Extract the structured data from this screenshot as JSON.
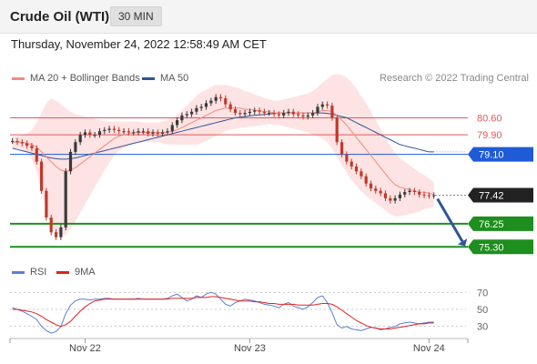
{
  "header": {
    "title": "Crude Oil (WTI)",
    "timeframe": "30 MIN",
    "datetime": "Thursday, November 24, 2022 12:58:49 AM CET"
  },
  "legend": {
    "bollinger": {
      "label": "MA 20 + Bollinger Bands",
      "color": "#f28b82"
    },
    "ma50": {
      "label": "MA 50",
      "color": "#2f5597"
    },
    "credit": "Research © 2022 Trading Central"
  },
  "rsi_legend": {
    "rsi": {
      "label": "RSI",
      "color": "#5b7fd6"
    },
    "ma9": {
      "label": "9MA",
      "color": "#e0221f"
    }
  },
  "colors": {
    "candle_up": "#3a3a3a",
    "candle_down": "#c0392b",
    "band_fill": "#fde3e3",
    "resistance": "#e05a5a",
    "pivot": "#1f5bd6",
    "support": "#1e8e1e",
    "last_price": "#222222",
    "forecast_arrow": "#2f5597"
  },
  "chart_data": {
    "type": "candlestick",
    "ylim": [
      74.9,
      81.7
    ],
    "x_ticks": [
      "Nov 22",
      "Nov 23",
      "Nov 24"
    ],
    "levels": [
      {
        "value": 80.6,
        "label": "80.60",
        "kind": "resistance"
      },
      {
        "value": 79.9,
        "label": "79.90",
        "kind": "resistance"
      },
      {
        "value": 79.1,
        "label": "79.10",
        "kind": "pivot"
      },
      {
        "value": 77.42,
        "label": "77.42",
        "kind": "last"
      },
      {
        "value": 76.25,
        "label": "76.25",
        "kind": "support"
      },
      {
        "value": 75.3,
        "label": "75.30",
        "kind": "support"
      }
    ],
    "close": [
      79.65,
      79.6,
      79.55,
      79.45,
      79.35,
      78.8,
      77.6,
      76.5,
      75.9,
      75.7,
      76.1,
      78.4,
      79.2,
      79.6,
      79.9,
      80.0,
      79.9,
      79.9,
      80.05,
      80.1,
      80.15,
      80.1,
      80.05,
      80.05,
      80.0,
      80.0,
      80.05,
      80.05,
      79.95,
      80.0,
      79.95,
      80.0,
      80.05,
      80.3,
      80.5,
      80.7,
      80.75,
      80.85,
      81.0,
      81.05,
      81.2,
      81.3,
      81.45,
      81.4,
      81.15,
      80.95,
      80.8,
      80.75,
      80.8,
      80.85,
      80.9,
      80.85,
      80.8,
      80.8,
      80.75,
      80.7,
      80.8,
      80.85,
      80.75,
      80.7,
      80.65,
      80.7,
      80.8,
      81.05,
      81.15,
      81.1,
      80.6,
      79.6,
      79.1,
      78.8,
      78.6,
      78.4,
      78.2,
      77.9,
      77.7,
      77.6,
      77.5,
      77.3,
      77.2,
      77.3,
      77.45,
      77.55,
      77.6,
      77.55,
      77.45,
      77.42,
      77.4,
      77.42
    ],
    "ma20": [
      79.6,
      79.6,
      79.6,
      79.55,
      79.5,
      79.4,
      79.2,
      79.0,
      78.8,
      78.6,
      78.45,
      78.4,
      78.45,
      78.55,
      78.7,
      78.85,
      79.0,
      79.15,
      79.3,
      79.45,
      79.6,
      79.75,
      79.85,
      79.9,
      79.95,
      80.0,
      80.0,
      80.0,
      80.0,
      80.0,
      80.0,
      80.0,
      80.0,
      80.05,
      80.1,
      80.2,
      80.3,
      80.4,
      80.5,
      80.6,
      80.7,
      80.8,
      80.9,
      80.95,
      81.0,
      81.0,
      81.0,
      81.0,
      80.95,
      80.95,
      80.9,
      80.9,
      80.85,
      80.85,
      80.8,
      80.8,
      80.8,
      80.8,
      80.8,
      80.8,
      80.8,
      80.8,
      80.8,
      80.85,
      80.9,
      80.9,
      80.85,
      80.7,
      80.5,
      80.3,
      80.05,
      79.8,
      79.55,
      79.3,
      79.05,
      78.8,
      78.55,
      78.3,
      78.05,
      77.85,
      77.75,
      77.7,
      77.65,
      77.6,
      77.55,
      77.55,
      77.5,
      77.45
    ],
    "band_width": [
      0.25,
      0.25,
      0.3,
      0.4,
      0.6,
      1.0,
      1.6,
      2.2,
      2.6,
      2.7,
      2.7,
      2.6,
      2.4,
      2.2,
      2.0,
      1.8,
      1.6,
      1.4,
      1.2,
      1.0,
      0.85,
      0.7,
      0.6,
      0.55,
      0.5,
      0.45,
      0.45,
      0.4,
      0.4,
      0.4,
      0.4,
      0.45,
      0.5,
      0.55,
      0.6,
      0.7,
      0.8,
      0.9,
      1.0,
      1.05,
      1.05,
      1.05,
      1.05,
      1.0,
      0.95,
      0.9,
      0.85,
      0.8,
      0.75,
      0.7,
      0.65,
      0.6,
      0.55,
      0.5,
      0.5,
      0.5,
      0.55,
      0.6,
      0.65,
      0.7,
      0.75,
      0.8,
      0.9,
      1.0,
      1.15,
      1.3,
      1.5,
      1.7,
      1.85,
      1.95,
      2.0,
      2.0,
      1.95,
      1.9,
      1.8,
      1.7,
      1.6,
      1.5,
      1.4,
      1.3,
      1.2,
      1.1,
      1.0,
      0.9,
      0.8,
      0.7,
      0.6,
      0.5
    ],
    "ma50": [
      79.35,
      79.3,
      79.25,
      79.2,
      79.15,
      79.1,
      79.05,
      79.0,
      78.95,
      78.92,
      78.9,
      78.9,
      78.92,
      78.95,
      79.0,
      79.05,
      79.1,
      79.15,
      79.2,
      79.25,
      79.3,
      79.35,
      79.4,
      79.45,
      79.5,
      79.55,
      79.6,
      79.65,
      79.7,
      79.75,
      79.8,
      79.85,
      79.9,
      79.95,
      80.0,
      80.05,
      80.1,
      80.15,
      80.2,
      80.25,
      80.3,
      80.35,
      80.4,
      80.45,
      80.5,
      80.55,
      80.6,
      80.62,
      80.65,
      80.68,
      80.7,
      80.72,
      80.74,
      80.76,
      80.78,
      80.8,
      80.8,
      80.8,
      80.8,
      80.8,
      80.8,
      80.8,
      80.8,
      80.8,
      80.8,
      80.78,
      80.75,
      80.7,
      80.65,
      80.6,
      80.5,
      80.4,
      80.3,
      80.2,
      80.1,
      80.0,
      79.9,
      79.8,
      79.7,
      79.6,
      79.5,
      79.45,
      79.4,
      79.35,
      79.3,
      79.25,
      79.2,
      79.2
    ],
    "forecast": {
      "from": 77.42,
      "to": 75.3
    },
    "rsi": {
      "ylim": [
        20,
        80
      ],
      "ticks": [
        30,
        50,
        70
      ],
      "rsi": [
        52,
        50,
        48,
        45,
        42,
        38,
        30,
        25,
        22,
        24,
        30,
        45,
        55,
        60,
        62,
        62,
        61,
        62,
        62,
        63,
        63,
        62,
        62,
        62,
        62,
        62,
        63,
        62,
        62,
        62,
        62,
        62,
        63,
        66,
        68,
        64,
        60,
        62,
        66,
        64,
        68,
        70,
        68,
        62,
        56,
        54,
        58,
        60,
        62,
        61,
        60,
        58,
        56,
        55,
        54,
        52,
        56,
        58,
        54,
        52,
        50,
        53,
        58,
        64,
        66,
        58,
        46,
        32,
        28,
        30,
        27,
        26,
        25,
        27,
        29,
        28,
        26,
        27,
        29,
        30,
        33,
        34,
        35,
        34,
        33,
        34,
        35,
        35
      ],
      "ma9": [
        50,
        50,
        49,
        48,
        47,
        45,
        42,
        38,
        35,
        32,
        30,
        32,
        36,
        42,
        48,
        53,
        57,
        60,
        61,
        62,
        62,
        62,
        62,
        62,
        62,
        62,
        62,
        62,
        62,
        62,
        62,
        62,
        62,
        63,
        63,
        63,
        63,
        63,
        64,
        64,
        64,
        65,
        65,
        64,
        63,
        62,
        61,
        60,
        60,
        60,
        59,
        59,
        58,
        57,
        57,
        56,
        56,
        56,
        56,
        55,
        55,
        55,
        55,
        56,
        57,
        57,
        56,
        53,
        49,
        45,
        41,
        37,
        34,
        31,
        29,
        28,
        27,
        27,
        27,
        28,
        29,
        30,
        31,
        32,
        33,
        33,
        34,
        34
      ]
    }
  }
}
